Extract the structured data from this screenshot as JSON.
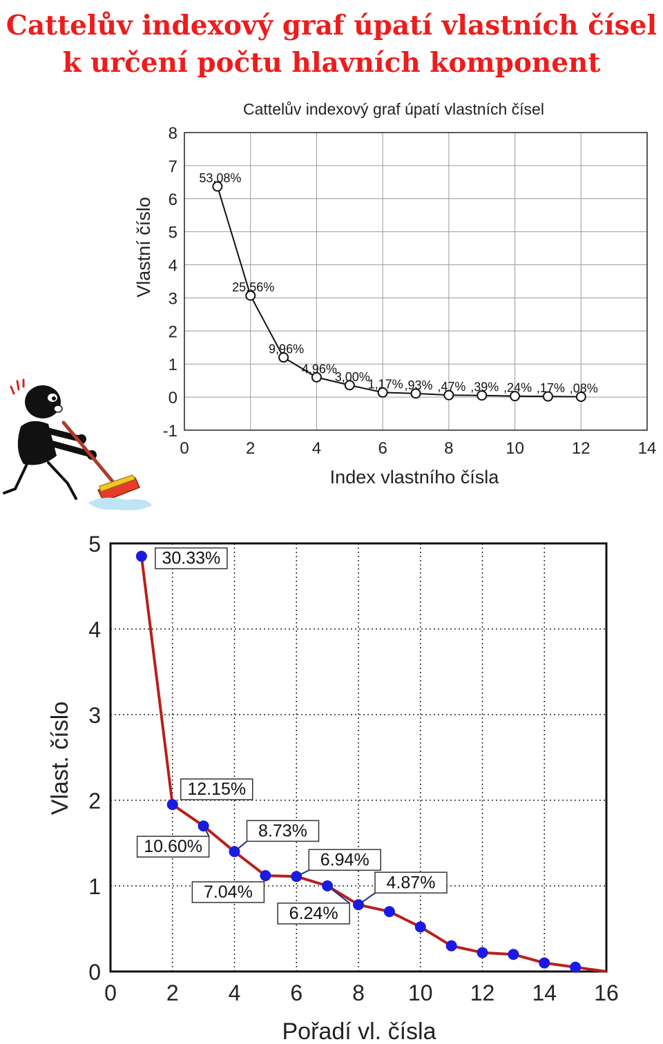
{
  "title": {
    "line1": "Cattelův indexový graf úpatí vlastních čísel",
    "line2": "k určení počtu hlavních komponent"
  },
  "colors": {
    "title": "#ee1c1c",
    "chart2_line": "#b8201c",
    "chart2_marker": "#1a1ae6"
  },
  "illustration": {
    "icon": "person-sweeping-icon"
  },
  "chart_data": [
    {
      "type": "line",
      "title": "Cattelův indexový graf úpatí vlastních čísel",
      "xlabel": "Index vlastního čísla",
      "ylabel": "Vlastní číslo",
      "xlim": [
        0,
        14
      ],
      "ylim": [
        -1,
        8
      ],
      "xticks": [
        0,
        2,
        4,
        6,
        8,
        10,
        12,
        14
      ],
      "yticks": [
        -1,
        0,
        1,
        2,
        3,
        4,
        5,
        6,
        7,
        8
      ],
      "grid": true,
      "markers": "open-circle",
      "x": [
        1,
        2,
        3,
        4,
        5,
        6,
        7,
        8,
        9,
        10,
        11,
        12
      ],
      "y": [
        6.37,
        3.07,
        1.2,
        0.6,
        0.36,
        0.14,
        0.11,
        0.06,
        0.05,
        0.03,
        0.02,
        0.01
      ],
      "point_labels": [
        "53,08%",
        "25,56%",
        "9,96%",
        "4,96%",
        "3,00%",
        "1,17%",
        ",93%",
        ",47%",
        ",39%",
        ",24%",
        ",17%",
        ",08%"
      ]
    },
    {
      "type": "line",
      "title": "",
      "xlabel": "Pořadí vl. čísla",
      "ylabel": "Vlast. číslo",
      "xlim": [
        0,
        16
      ],
      "ylim": [
        0,
        5
      ],
      "xticks": [
        0,
        2,
        4,
        6,
        8,
        10,
        12,
        14,
        16
      ],
      "yticks": [
        0,
        1,
        2,
        3,
        4,
        5
      ],
      "grid": true,
      "markers": "filled-circle",
      "x": [
        1,
        2,
        3,
        4,
        5,
        6,
        7,
        8,
        9,
        10,
        11,
        12,
        13,
        14,
        15,
        16
      ],
      "y": [
        4.85,
        1.95,
        1.7,
        1.4,
        1.12,
        1.11,
        1.0,
        0.78,
        0.7,
        0.52,
        0.3,
        0.22,
        0.2,
        0.1,
        0.05,
        0.0
      ],
      "annotations": [
        {
          "x": 1,
          "text": "30.33%"
        },
        {
          "x": 2,
          "text": "12.15%"
        },
        {
          "x": 3,
          "text": "10.60%"
        },
        {
          "x": 4,
          "text": "8.73%"
        },
        {
          "x": 5,
          "text": "7.04%"
        },
        {
          "x": 6,
          "text": "6.94%"
        },
        {
          "x": 7,
          "text": "6.24%"
        },
        {
          "x": 8,
          "text": "4.87%"
        }
      ]
    }
  ]
}
